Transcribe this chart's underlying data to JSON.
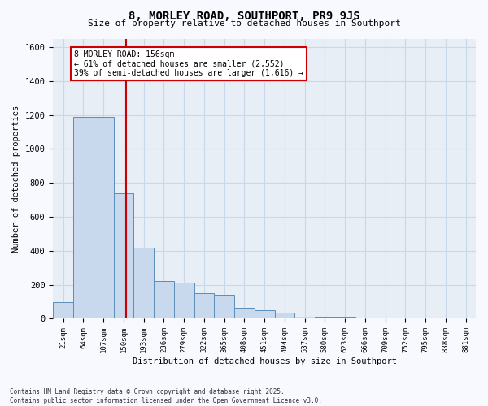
{
  "title": "8, MORLEY ROAD, SOUTHPORT, PR9 9JS",
  "subtitle": "Size of property relative to detached houses in Southport",
  "xlabel": "Distribution of detached houses by size in Southport",
  "ylabel": "Number of detached properties",
  "bar_color": "#c8d8ed",
  "bar_edge_color": "#5b8db8",
  "grid_color": "#c8d8e8",
  "plot_bg_color": "#e8eef6",
  "fig_bg_color": "#f8f8ff",
  "red_line_x": 156,
  "annotation_text": "8 MORLEY ROAD: 156sqm\n← 61% of detached houses are smaller (2,552)\n39% of semi-detached houses are larger (1,616) →",
  "annotation_box_color": "#ffffff",
  "annotation_border_color": "#cc0000",
  "footnote": "Contains HM Land Registry data © Crown copyright and database right 2025.\nContains public sector information licensed under the Open Government Licence v3.0.",
  "categories": [
    "21sqm",
    "64sqm",
    "107sqm",
    "150sqm",
    "193sqm",
    "236sqm",
    "279sqm",
    "322sqm",
    "365sqm",
    "408sqm",
    "451sqm",
    "494sqm",
    "537sqm",
    "580sqm",
    "623sqm",
    "666sqm",
    "709sqm",
    "752sqm",
    "795sqm",
    "838sqm",
    "881sqm"
  ],
  "bin_starts": [
    0,
    43,
    86,
    129,
    172,
    215,
    258,
    301,
    344,
    387,
    430,
    473,
    516,
    559,
    602,
    645,
    688,
    731,
    774,
    817,
    860
  ],
  "bin_width": 43,
  "values": [
    100,
    1190,
    1190,
    740,
    420,
    220,
    215,
    150,
    140,
    65,
    48,
    35,
    10,
    8,
    5,
    3,
    3,
    2,
    2,
    2,
    2
  ],
  "ylim": [
    0,
    1650
  ],
  "yticks": [
    0,
    200,
    400,
    600,
    800,
    1000,
    1200,
    1400,
    1600
  ]
}
